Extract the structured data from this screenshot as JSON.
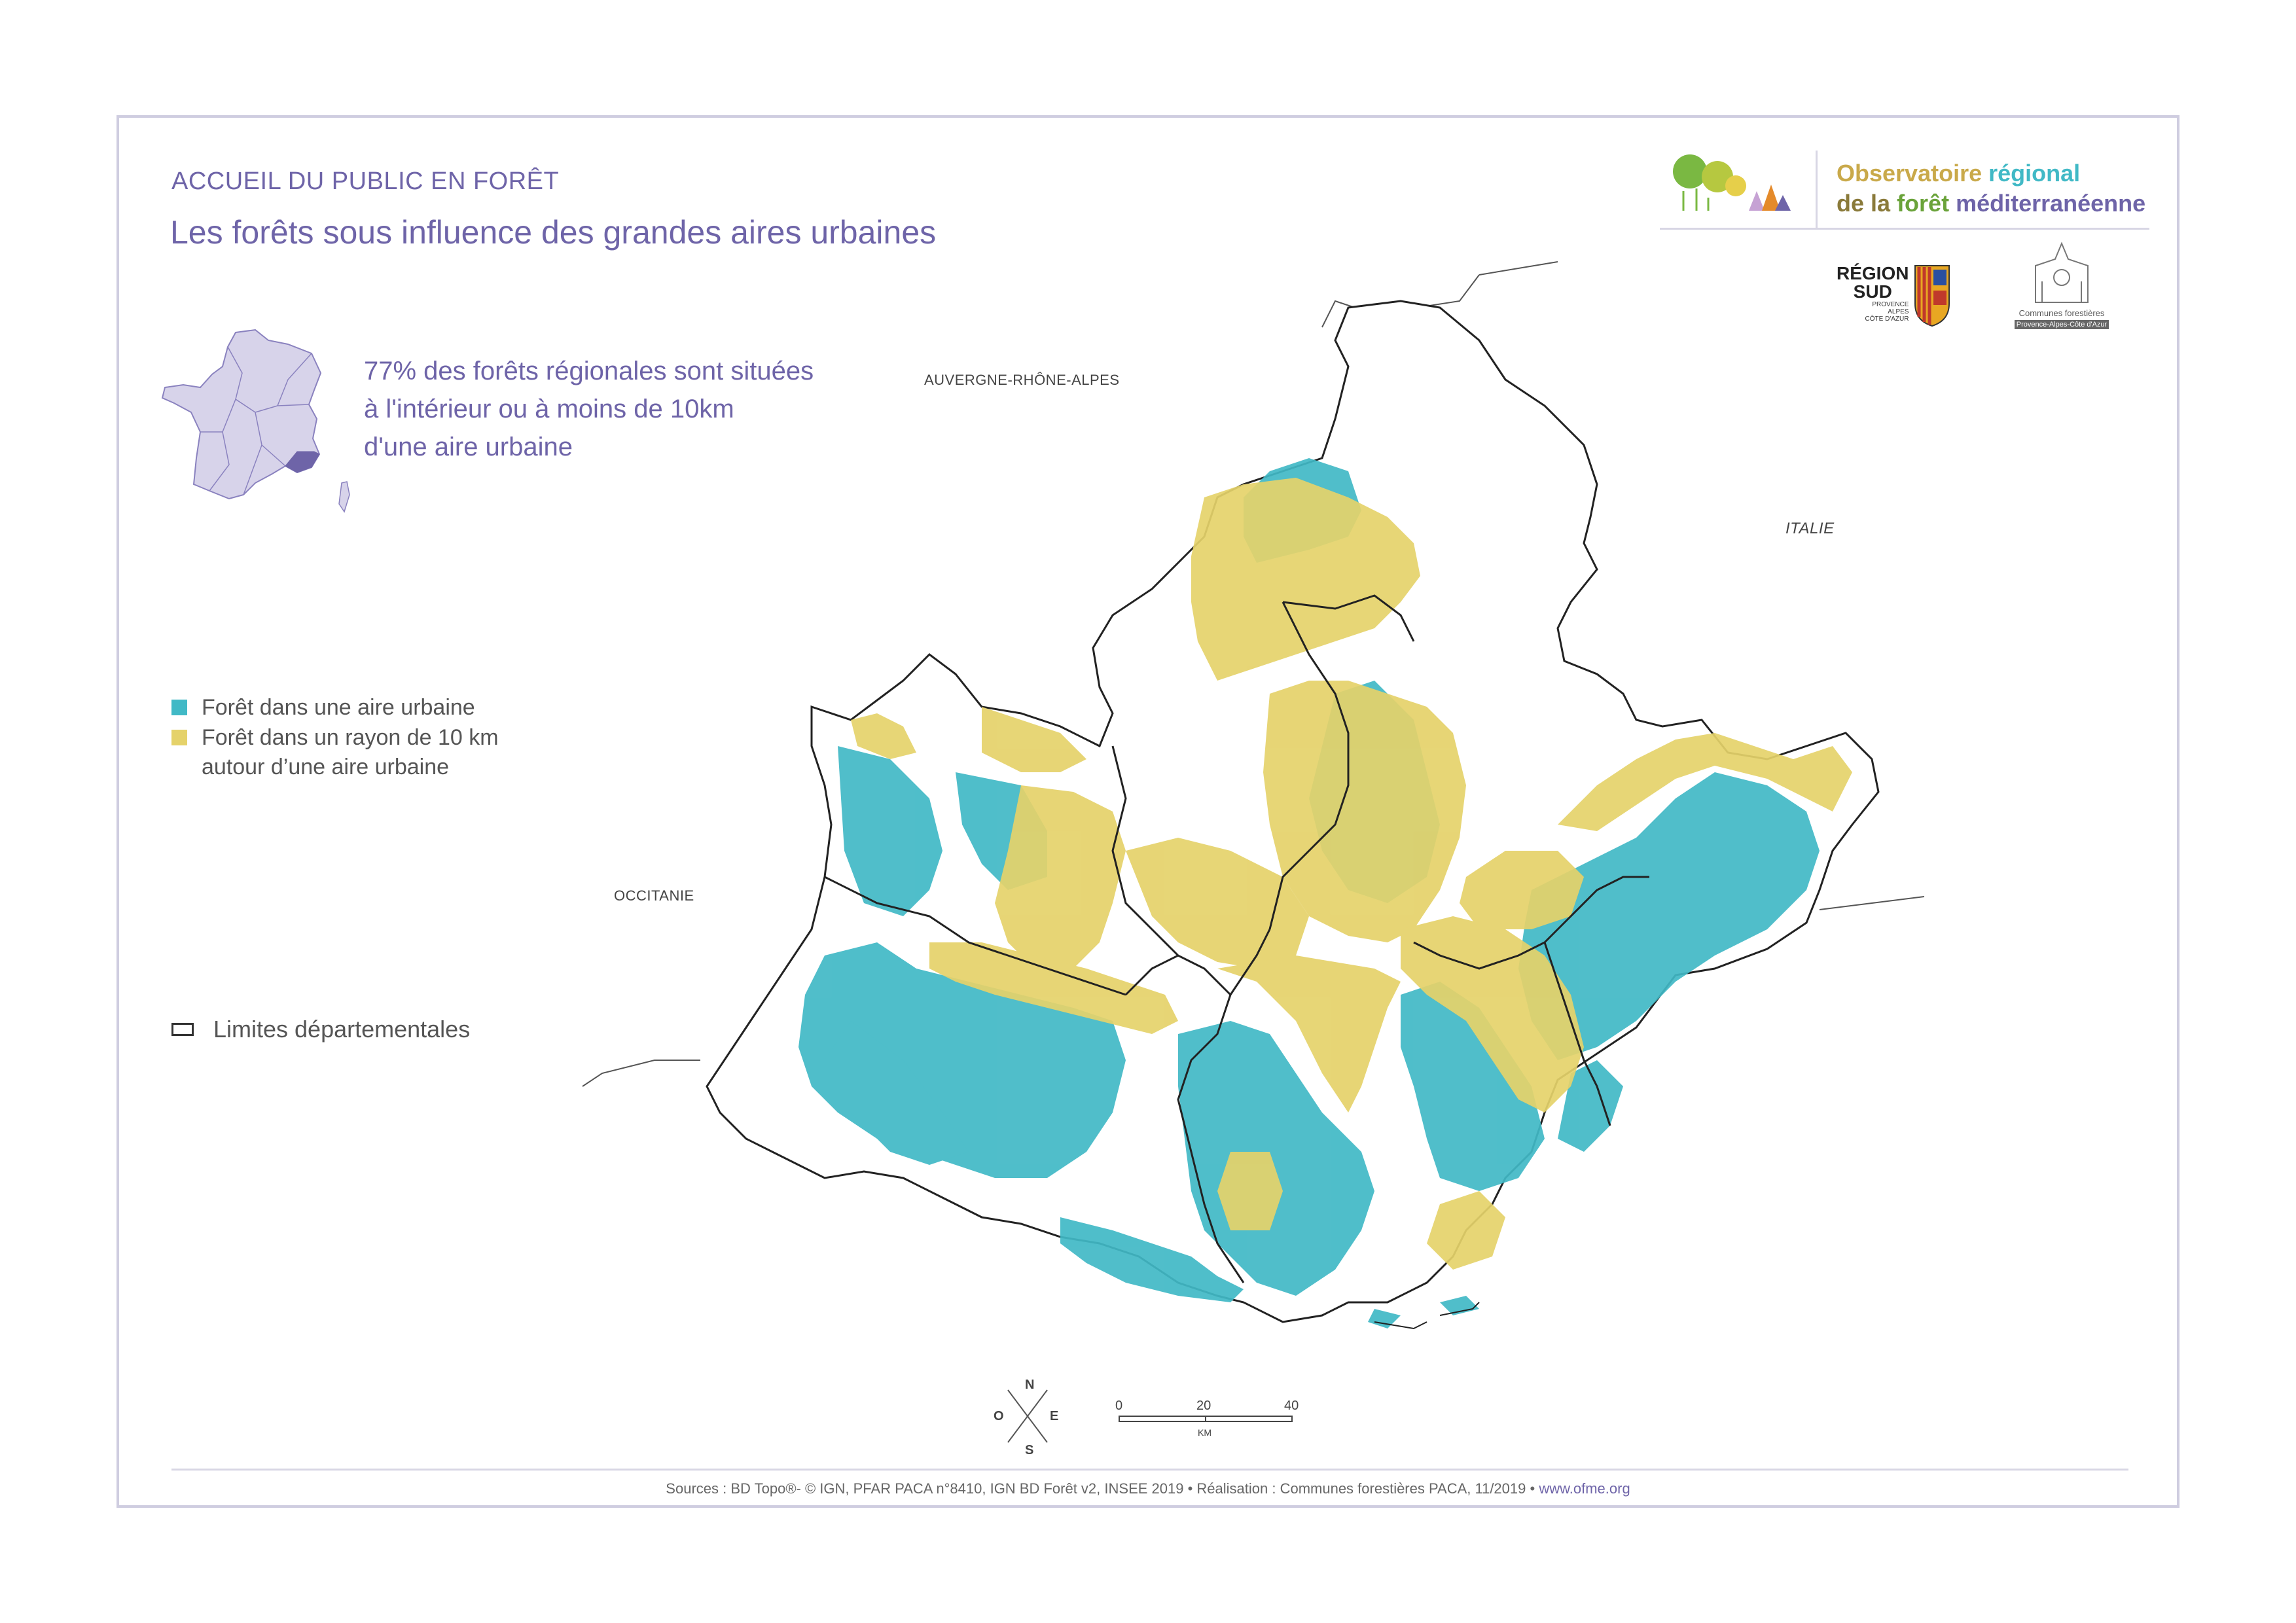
{
  "header": {
    "kicker": "ACCUEIL DU PUBLIC EN FORÊT",
    "title": "Les forêts sous influence des grandes aires urbaines"
  },
  "stat": {
    "line1": "77% des forêts régionales sont situées",
    "line2": "à l'intérieur ou à moins de 10km",
    "line3": "d'une aire urbaine"
  },
  "legend": {
    "item1": "Forêt dans une aire urbaine",
    "item2_line1": "Forêt dans un rayon de 10 km",
    "item2_line2": "autour d’une aire urbaine",
    "limits": "Limites départementales"
  },
  "map_labels": {
    "auvergne": "AUVERGNE-RHÔNE-ALPES",
    "italie": "ITALIE",
    "occitanie": "OCCITANIE"
  },
  "colors": {
    "urban_forest": "#41b9c6",
    "buffer_forest": "#e5d26a",
    "accent": "#6e64a8",
    "border": "#222222"
  },
  "logos": {
    "ofme_word1": "Observatoire",
    "ofme_word2": "régional",
    "ofme_word3": "de la",
    "ofme_word4": "forêt",
    "ofme_word5": "méditerranéenne",
    "region_line1": "RÉGION",
    "region_line2": "SUD",
    "region_line3": "PROVENCE",
    "region_line4": "ALPES",
    "region_line5": "CÔTE D'AZUR",
    "communes_name": "Communes forestières",
    "communes_tag": "Provence-Alpes-Côte d'Azur"
  },
  "compass": {
    "n": "N",
    "s": "S",
    "e": "E",
    "o": "O"
  },
  "scale": {
    "t0": "0",
    "t20": "20",
    "t40": "40",
    "unit": "KM"
  },
  "footer": {
    "sources": "Sources : BD Topo®- © IGN, PFAR PACA n°8410, IGN BD Forêt v2, INSEE 2019 • Réalisation : Communes forestières PACA, 11/2019 • ",
    "url": "www.ofme.org"
  }
}
